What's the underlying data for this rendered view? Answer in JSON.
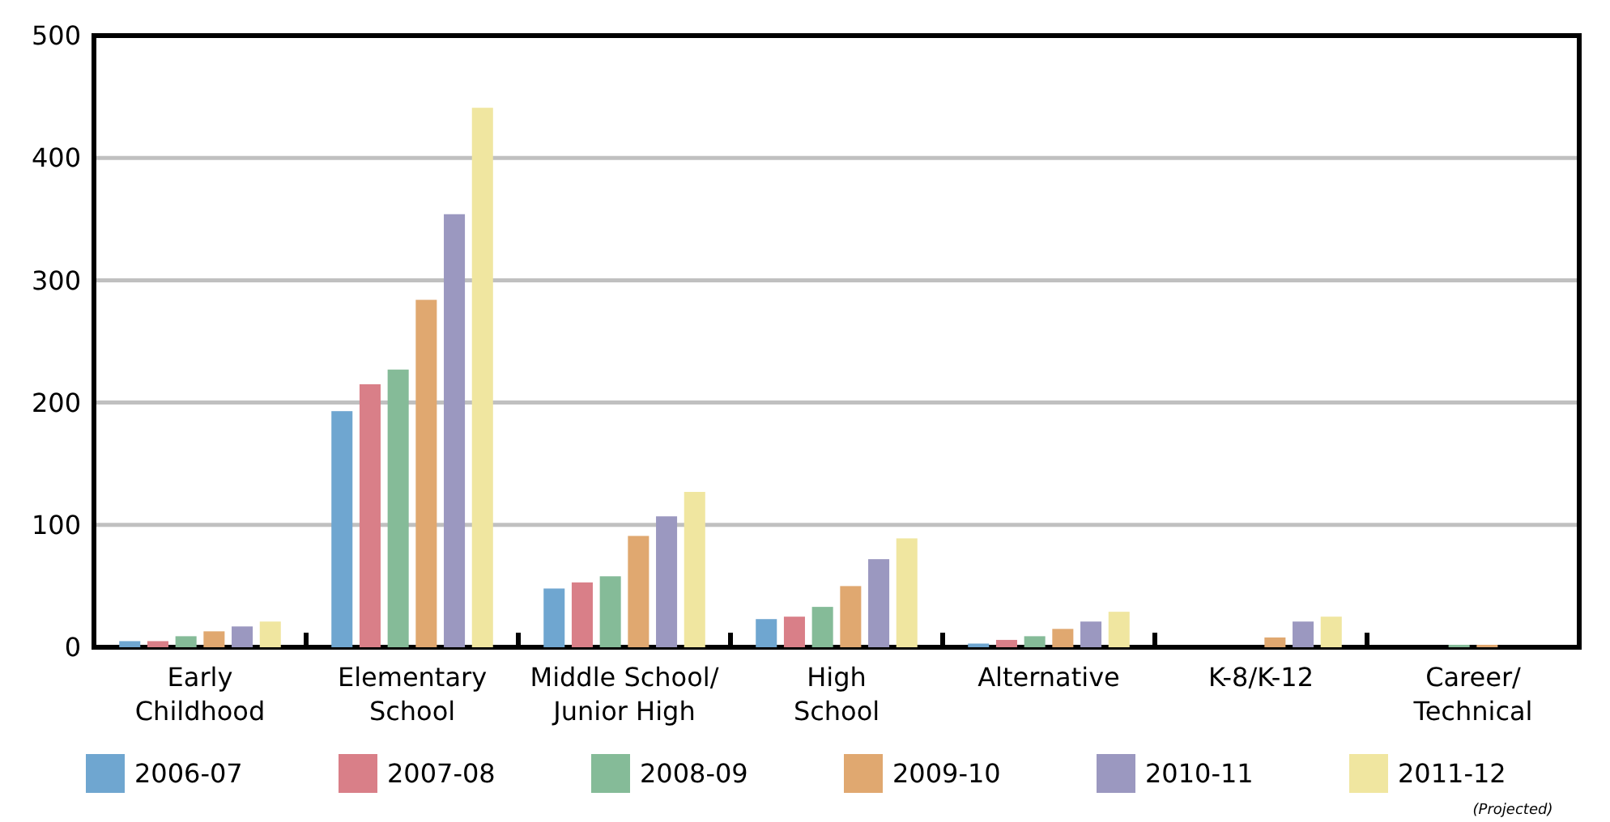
{
  "chart_data": {
    "type": "bar",
    "categories": [
      "Early Childhood",
      "Elementary School",
      "Middle School/ Junior High",
      "High School",
      "Alternative",
      "K-8/K-12",
      "Career/ Technical"
    ],
    "series": [
      {
        "name": "2006-07",
        "color": "#6fa6d0",
        "values": [
          5,
          193,
          48,
          23,
          3,
          null,
          null
        ]
      },
      {
        "name": "2007-08",
        "color": "#d97f88",
        "values": [
          5,
          215,
          53,
          25,
          6,
          null,
          null
        ]
      },
      {
        "name": "2008-09",
        "color": "#85bb98",
        "values": [
          9,
          227,
          58,
          33,
          9,
          null,
          2
        ]
      },
      {
        "name": "2009-10",
        "color": "#e0a870",
        "values": [
          13,
          284,
          91,
          50,
          15,
          8,
          2
        ]
      },
      {
        "name": "2010-11",
        "color": "#9b98c0",
        "values": [
          17,
          354,
          107,
          72,
          21,
          21,
          null
        ]
      },
      {
        "name": "2011-12",
        "color": "#f0e6a0",
        "values": [
          21,
          441,
          127,
          89,
          29,
          25,
          null
        ]
      }
    ],
    "ylim": [
      0,
      500
    ],
    "yticks": [
      0,
      100,
      200,
      300,
      400,
      500
    ],
    "grid": "y",
    "legend": "bottom",
    "annotations": [
      "(Projected)"
    ]
  }
}
